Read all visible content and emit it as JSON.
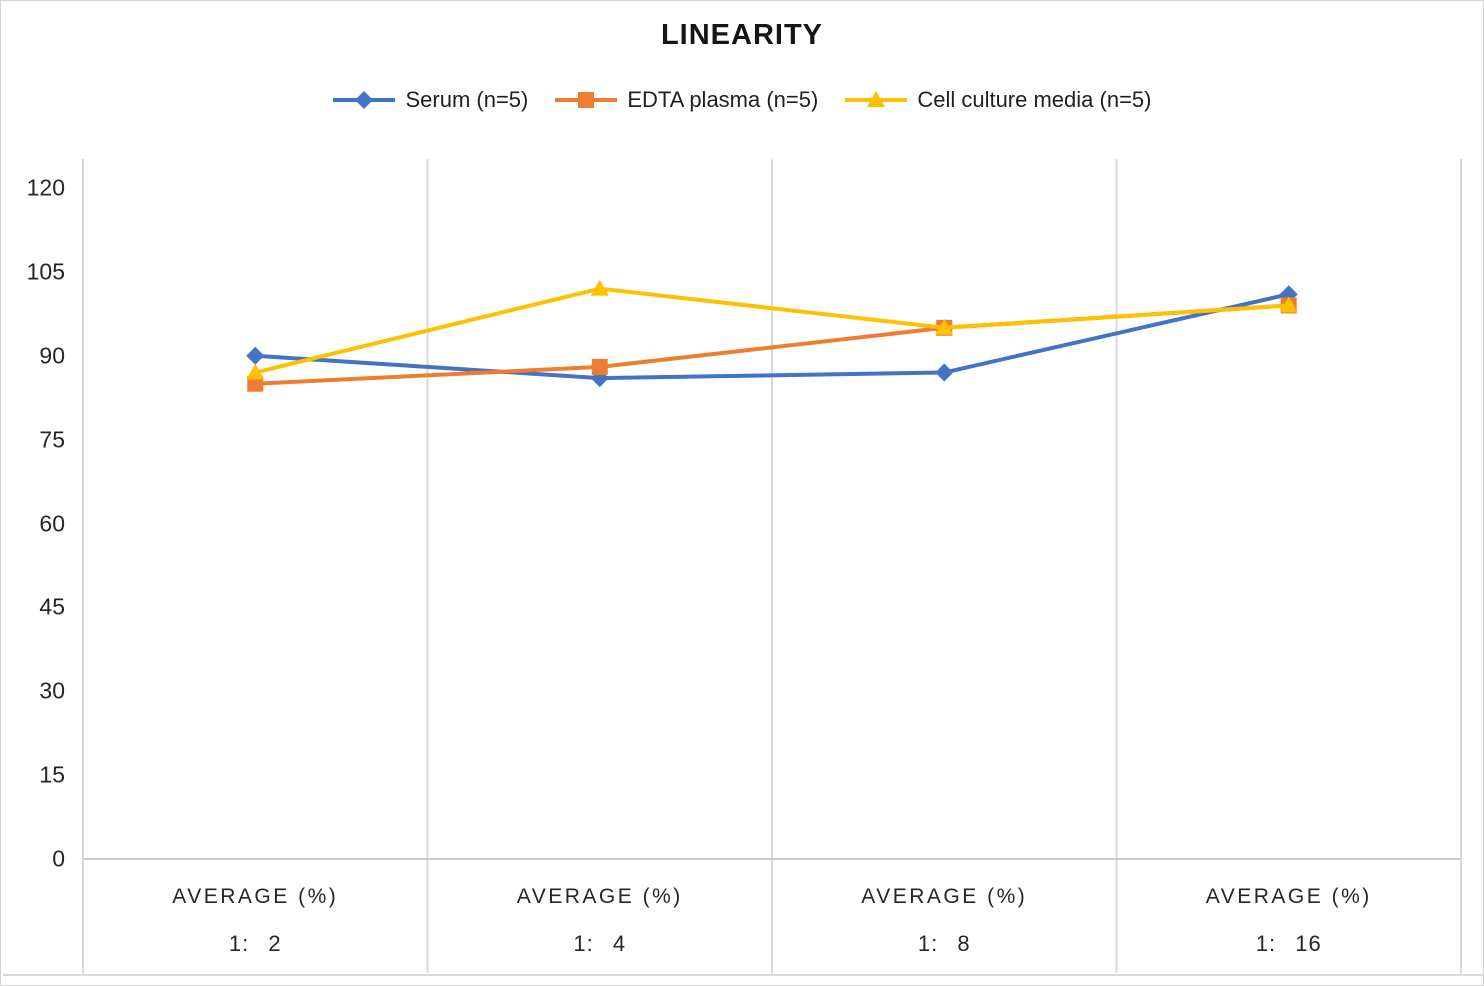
{
  "chart_data": {
    "type": "line",
    "title": "LINEARITY",
    "legend_position": "top",
    "grid": "vertical-only",
    "x_axis_group_label": "AVERAGE (%)",
    "categories": [
      "1: 2",
      "1: 4",
      "1: 8",
      "1: 16"
    ],
    "x_ticks": [
      {
        "line1": "AVERAGE (%)",
        "line2": "1: 2"
      },
      {
        "line1": "AVERAGE (%)",
        "line2": "1: 4"
      },
      {
        "line1": "AVERAGE (%)",
        "line2": "1: 8"
      },
      {
        "line1": "AVERAGE (%)",
        "line2": "1: 16"
      }
    ],
    "yticks": [
      0,
      15,
      30,
      45,
      60,
      75,
      90,
      105,
      120
    ],
    "ylim": [
      0,
      125
    ],
    "series": [
      {
        "name": "Serum (n=5)",
        "color": "#4472C4",
        "marker": "diamond",
        "values": [
          90,
          86,
          87,
          101
        ]
      },
      {
        "name": "EDTA plasma (n=5)",
        "color": "#ED7D31",
        "marker": "square",
        "values": [
          85,
          88,
          95,
          99
        ]
      },
      {
        "name": "Cell culture media (n=5)",
        "color": "#FFC000",
        "marker": "triangle",
        "values": [
          87,
          102,
          95,
          99
        ]
      }
    ],
    "colors": {
      "gridline": "#D9D9D9",
      "axis_line": "#C9C9C9",
      "text": "#262626",
      "title": "#151515"
    }
  }
}
